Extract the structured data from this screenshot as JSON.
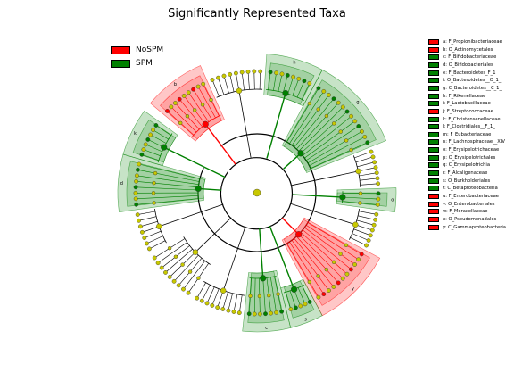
{
  "title": "Significantly Represented Taxa",
  "colors": {
    "NoSPM": "#ff0000",
    "SPM": "#008000",
    "node_default": "#c8c800"
  },
  "legend": [
    {
      "label": "NoSPM",
      "group": "NoSPM"
    },
    {
      "label": "SPM",
      "group": "SPM"
    }
  ],
  "taxa_key": [
    {
      "label": "a: F_Propionibacteriaceae",
      "group": "NoSPM"
    },
    {
      "label": "b: O_Actinomycetales",
      "group": "NoSPM"
    },
    {
      "label": "c: F_Bifidobacteriaceae",
      "group": "SPM"
    },
    {
      "label": "d: O_Bifidobacteriales",
      "group": "SPM"
    },
    {
      "label": "e: F_Bacteroidetes_F_1",
      "group": "SPM"
    },
    {
      "label": "f: O_Bacteroidetes__O_1_",
      "group": "SPM"
    },
    {
      "label": "g: C_Bacteroidetes__C_1_",
      "group": "SPM"
    },
    {
      "label": "h: F_Rikenellaceae",
      "group": "SPM"
    },
    {
      "label": "i: F_Lactobacillaceae",
      "group": "SPM"
    },
    {
      "label": "j: F_Streptococcaceae",
      "group": "NoSPM"
    },
    {
      "label": "k: F_Christensenellaceae",
      "group": "SPM"
    },
    {
      "label": "l: F_Clostridiales__F_1_",
      "group": "SPM"
    },
    {
      "label": "m: F_Eubacteriaceae",
      "group": "SPM"
    },
    {
      "label": "n: F_Lachnospiraceae__XIV",
      "group": "SPM"
    },
    {
      "label": "o: F_Erysipelotrichaceae",
      "group": "SPM"
    },
    {
      "label": "p: O_Erysipelotrichales",
      "group": "SPM"
    },
    {
      "label": "q: C_Erysipelotrichia",
      "group": "SPM"
    },
    {
      "label": "r: F_Alcaligenaceae",
      "group": "SPM"
    },
    {
      "label": "s: O_Burkholderiales",
      "group": "SPM"
    },
    {
      "label": "t: C_Betaproteobacteria",
      "group": "SPM"
    },
    {
      "label": "u: F_Enterobacteriaceae",
      "group": "NoSPM"
    },
    {
      "label": "v: O_Enterobacteriales",
      "group": "NoSPM"
    },
    {
      "label": "w: F_Moraxellaceae",
      "group": "NoSPM"
    },
    {
      "label": "x: O_Pseudomonadales",
      "group": "NoSPM"
    },
    {
      "label": "y: C_Gammaproteobacteria",
      "group": "NoSPM"
    }
  ],
  "clade_labels": {
    "a": "a",
    "b": "b",
    "c": "c",
    "d": "d",
    "e": "e",
    "f": "f",
    "g": "g",
    "h": "h",
    "i": "i",
    "j": "j",
    "k": "k",
    "l": "l",
    "m": "m",
    "n": "n",
    "o": "o",
    "p": "p",
    "q": "q",
    "r": "r",
    "s": "s",
    "t": "t",
    "u": "u",
    "v": "v",
    "w": "w",
    "x": "x",
    "y": "y"
  }
}
